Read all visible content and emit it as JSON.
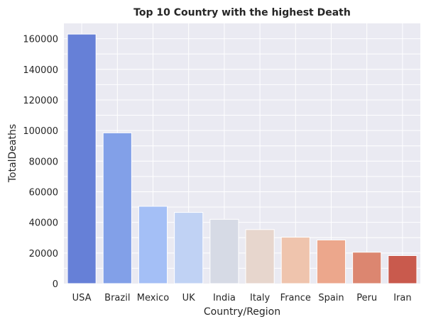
{
  "chart_data": {
    "type": "bar",
    "title": "Top 10 Country with the highest Death",
    "xlabel": "Country/Region",
    "ylabel": "TotalDeaths",
    "categories": [
      "USA",
      "Brazil",
      "Mexico",
      "UK",
      "India",
      "Italy",
      "France",
      "Spain",
      "Peru",
      "Iran"
    ],
    "values": [
      163000,
      98500,
      50500,
      46500,
      42000,
      35300,
      30300,
      28500,
      20500,
      18300
    ],
    "ylim": [
      0,
      170000
    ],
    "yticks": [
      0,
      20000,
      40000,
      60000,
      80000,
      100000,
      120000,
      140000,
      160000
    ],
    "grid": true,
    "colors": {
      "plot_background": "#eaeaf2",
      "grid": "#ffffff",
      "bars": [
        "#6680d7",
        "#82a0e8",
        "#a4bff6",
        "#c0d2f4",
        "#d6dae5",
        "#e7d6cd",
        "#efc4ad",
        "#eca78c",
        "#dc8670",
        "#c95a4d"
      ]
    }
  }
}
